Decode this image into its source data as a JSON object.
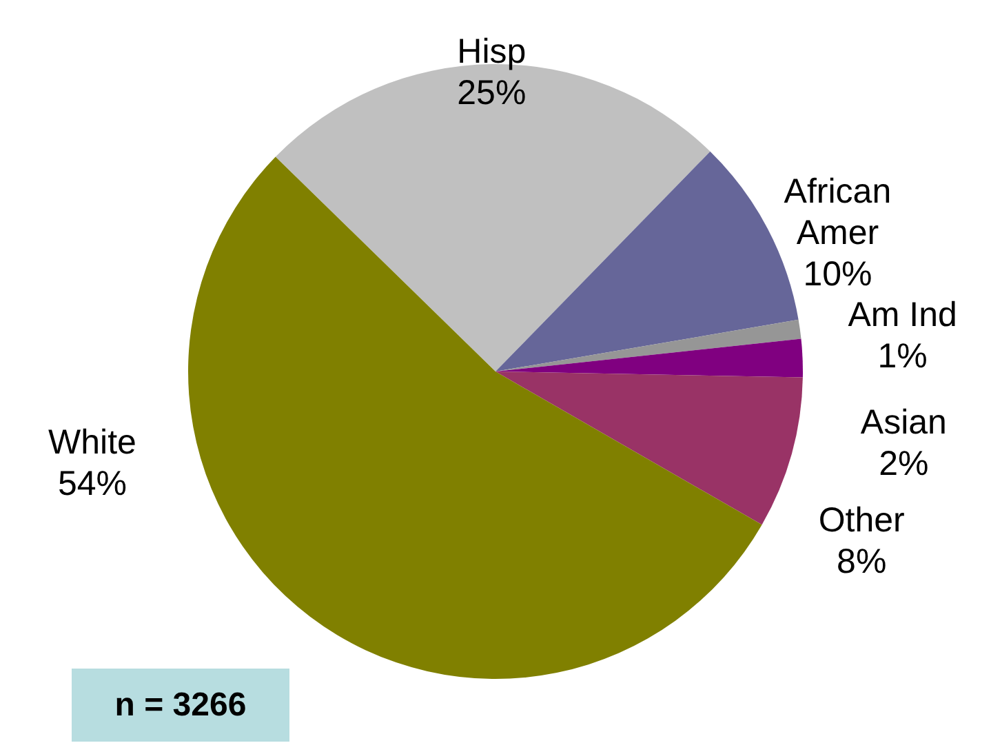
{
  "chart_data": {
    "type": "pie",
    "categories": [
      "Hisp",
      "African Amer",
      "Am Ind",
      "Asian",
      "Other",
      "White"
    ],
    "values": [
      25,
      10,
      1,
      2,
      8,
      54
    ],
    "value_labels": [
      "25%",
      "10%",
      "1%",
      "2%",
      "8%",
      "54%"
    ],
    "colors": [
      "#c0c0c0",
      "#666699",
      "#969696",
      "#800080",
      "#993366",
      "#808000"
    ],
    "annotations": [
      "n = 3266"
    ]
  }
}
